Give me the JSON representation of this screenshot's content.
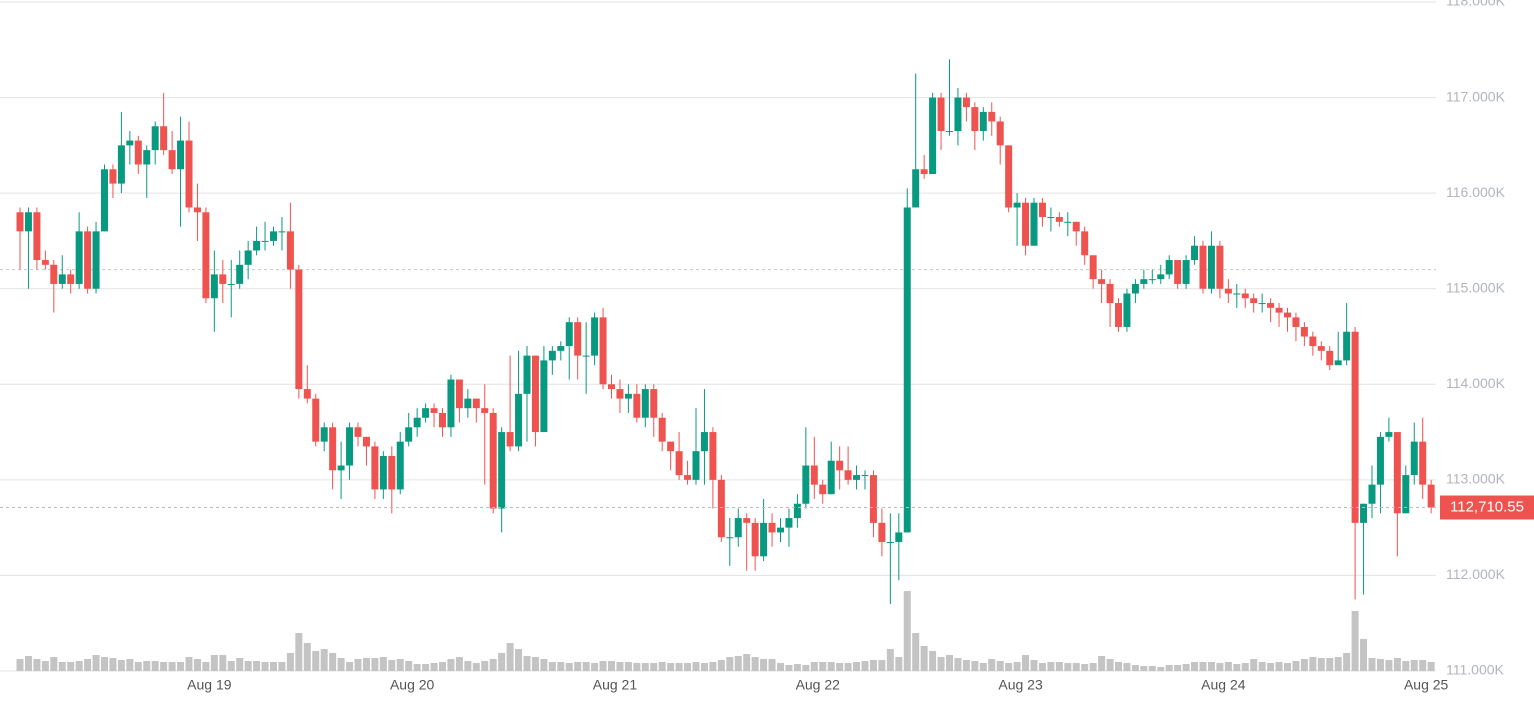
{
  "chart_data": {
    "type": "candlestick",
    "categories": [
      null,
      null,
      null,
      null,
      null,
      null,
      null,
      null,
      null,
      null,
      null,
      null,
      null,
      null,
      null,
      null,
      null,
      null,
      null,
      null,
      null,
      null,
      null,
      "Aug 19",
      null,
      null,
      null,
      null,
      null,
      null,
      null,
      null,
      null,
      null,
      null,
      null,
      null,
      null,
      null,
      null,
      null,
      null,
      null,
      null,
      null,
      null,
      null,
      "Aug 20",
      null,
      null,
      null,
      null,
      null,
      null,
      null,
      null,
      null,
      null,
      null,
      null,
      null,
      null,
      null,
      null,
      null,
      null,
      null,
      null,
      null,
      null,
      null,
      "Aug 21",
      null,
      null,
      null,
      null,
      null,
      null,
      null,
      null,
      null,
      null,
      null,
      null,
      null,
      null,
      null,
      null,
      null,
      null,
      null,
      null,
      null,
      null,
      null,
      "Aug 22",
      null,
      null,
      null,
      null,
      null,
      null,
      null,
      null,
      null,
      null,
      null,
      null,
      null,
      null,
      null,
      null,
      null,
      null,
      null,
      null,
      null,
      null,
      null,
      "Aug 23",
      null,
      null,
      null,
      null,
      null,
      null,
      null,
      null,
      null,
      null,
      null,
      null,
      null,
      null,
      null,
      null,
      null,
      null,
      null,
      null,
      null,
      null,
      null,
      "Aug 24",
      null,
      null,
      null,
      null,
      null,
      null,
      null,
      null,
      null,
      null,
      null,
      null,
      null,
      null,
      null,
      null,
      null,
      null,
      null,
      null,
      null,
      null,
      null,
      "Aug 25"
    ],
    "open": [
      115800,
      115600,
      115800,
      115300,
      115250,
      115050,
      115150,
      115050,
      115600,
      115000,
      115600,
      116250,
      116100,
      116500,
      116550,
      116300,
      116450,
      116700,
      116450,
      116250,
      116550,
      115850,
      115800,
      114900,
      115150,
      115050,
      115050,
      115250,
      115400,
      115500,
      115500,
      115600,
      115600,
      115200,
      113950,
      113850,
      113400,
      113550,
      113100,
      113150,
      113550,
      113450,
      113350,
      112900,
      113250,
      112900,
      113400,
      113550,
      113650,
      113750,
      113700,
      113550,
      114050,
      113750,
      113850,
      113750,
      113700,
      112700,
      113500,
      113350,
      113900,
      114300,
      113500,
      114250,
      114350,
      114400,
      114650,
      114300,
      114300,
      114700,
      114000,
      113950,
      113850,
      113900,
      113650,
      113950,
      113650,
      113400,
      113300,
      113050,
      113000,
      113300,
      113500,
      113000,
      112400,
      112400,
      112600,
      112550,
      112200,
      112550,
      112450,
      112500,
      112600,
      112750,
      113150,
      112950,
      112850,
      113200,
      113100,
      113000,
      113050,
      113050,
      112550,
      112350,
      112350,
      112450,
      115850,
      116250,
      116200,
      117000,
      116650,
      116650,
      117000,
      116900,
      116650,
      116850,
      116750,
      116500,
      115850,
      115900,
      115450,
      115900,
      115750,
      115750,
      115700,
      115700,
      115600,
      115350,
      115100,
      115050,
      114850,
      114600,
      114950,
      115050,
      115100,
      115100,
      115150,
      115300,
      115050,
      115300,
      115450,
      115000,
      115450,
      115000,
      114950,
      114950,
      114900,
      114850,
      114850,
      114800,
      114750,
      114700,
      114600,
      114500,
      114400,
      114350,
      114200,
      114250,
      114550,
      112550,
      112750,
      112950,
      113450,
      113500,
      112650,
      113050,
      113400,
      112950
    ],
    "high": [
      115850,
      115850,
      115850,
      115400,
      115300,
      115350,
      115200,
      115800,
      115650,
      115700,
      116300,
      116300,
      116850,
      116650,
      116600,
      116500,
      116750,
      117050,
      116650,
      116800,
      116750,
      116100,
      115850,
      115400,
      115300,
      115300,
      115400,
      115500,
      115650,
      115700,
      115650,
      115750,
      115900,
      115250,
      114200,
      113900,
      113600,
      113600,
      113400,
      113600,
      113600,
      113450,
      113400,
      113300,
      113350,
      113500,
      113700,
      113750,
      113800,
      113800,
      113750,
      114100,
      114050,
      113950,
      113850,
      114000,
      113750,
      113550,
      114300,
      114350,
      114400,
      114300,
      114400,
      114400,
      114450,
      114700,
      114700,
      114650,
      114750,
      114800,
      114100,
      114050,
      114000,
      114000,
      114000,
      114000,
      113700,
      113400,
      113500,
      113200,
      113750,
      113950,
      113550,
      113050,
      112600,
      112700,
      112650,
      112600,
      112800,
      112650,
      112600,
      112700,
      112850,
      113550,
      113450,
      113000,
      113400,
      113350,
      113350,
      113150,
      113100,
      113100,
      112700,
      112650,
      112650,
      116050,
      117250,
      116400,
      117050,
      117050,
      117400,
      117100,
      117050,
      116950,
      116900,
      116950,
      116800,
      116500,
      116000,
      115950,
      115950,
      115950,
      115850,
      115800,
      115800,
      115700,
      115650,
      115350,
      115200,
      115100,
      114900,
      115000,
      115100,
      115200,
      115200,
      115250,
      115350,
      115300,
      115350,
      115550,
      115500,
      115600,
      115500,
      115100,
      115050,
      115000,
      114950,
      114950,
      114900,
      114850,
      114800,
      114750,
      114650,
      114550,
      114450,
      114400,
      114550,
      114850,
      114600,
      112750,
      113150,
      113500,
      113650,
      113500,
      113150,
      113600,
      113650,
      113000
    ],
    "low": [
      115200,
      115000,
      115200,
      115200,
      114750,
      115000,
      114950,
      115000,
      114950,
      114950,
      115600,
      115950,
      116000,
      116300,
      116200,
      115950,
      116300,
      116400,
      116200,
      115650,
      115800,
      115500,
      114850,
      114550,
      114850,
      114700,
      115000,
      115100,
      115350,
      115400,
      115450,
      115400,
      115000,
      113850,
      113800,
      113350,
      113300,
      112900,
      112800,
      113000,
      113350,
      113150,
      112800,
      112800,
      112650,
      112850,
      113350,
      113450,
      113600,
      113550,
      113450,
      113450,
      113600,
      113650,
      113600,
      112950,
      112650,
      112450,
      113300,
      113300,
      113400,
      113350,
      113500,
      114100,
      114250,
      114050,
      114050,
      113900,
      114200,
      113950,
      113850,
      113700,
      113700,
      113600,
      113550,
      113450,
      113300,
      113100,
      113000,
      112950,
      112950,
      112950,
      112700,
      112350,
      112100,
      112300,
      112050,
      112050,
      112150,
      112300,
      112350,
      112300,
      112500,
      112700,
      112800,
      112750,
      112850,
      112900,
      112950,
      112900,
      112900,
      112400,
      112200,
      111700,
      111950,
      112450,
      115850,
      116150,
      116200,
      116450,
      116600,
      116500,
      116750,
      116450,
      116550,
      116600,
      116300,
      115800,
      115450,
      115350,
      115450,
      115650,
      115600,
      115650,
      115550,
      115450,
      115250,
      115000,
      114850,
      114600,
      114550,
      114550,
      114850,
      115000,
      115050,
      115050,
      115100,
      115000,
      115000,
      115250,
      114950,
      114950,
      114900,
      114850,
      114800,
      114800,
      114750,
      114750,
      114650,
      114600,
      114550,
      114450,
      114400,
      114300,
      114250,
      114150,
      114200,
      114200,
      111750,
      111800,
      112600,
      112650,
      113400,
      112200,
      112650,
      112950,
      112800,
      112650
    ],
    "close": [
      115600,
      115800,
      115300,
      115250,
      115050,
      115150,
      115050,
      115600,
      115000,
      115600,
      116250,
      116100,
      116500,
      116550,
      116300,
      116450,
      116700,
      116450,
      116250,
      116550,
      115850,
      115800,
      114900,
      115150,
      115050,
      115050,
      115250,
      115400,
      115500,
      115500,
      115600,
      115600,
      115200,
      113950,
      113850,
      113400,
      113550,
      113100,
      113150,
      113550,
      113450,
      113350,
      112900,
      113250,
      112900,
      113400,
      113550,
      113650,
      113750,
      113700,
      113550,
      114050,
      113750,
      113850,
      113750,
      113700,
      112700,
      113500,
      113350,
      113900,
      114300,
      113500,
      114250,
      114350,
      114400,
      114650,
      114300,
      114300,
      114700,
      114000,
      113950,
      113850,
      113900,
      113650,
      113950,
      113650,
      113400,
      113300,
      113050,
      113000,
      113300,
      113500,
      113000,
      112400,
      112400,
      112600,
      112550,
      112200,
      112550,
      112450,
      112500,
      112600,
      112750,
      113150,
      112950,
      112850,
      113200,
      113100,
      113000,
      113050,
      113050,
      112550,
      112350,
      112350,
      112450,
      115850,
      116250,
      116200,
      117000,
      116650,
      116650,
      117000,
      116900,
      116650,
      116850,
      116750,
      116500,
      115850,
      115900,
      115450,
      115900,
      115750,
      115750,
      115700,
      115700,
      115600,
      115350,
      115100,
      115050,
      114850,
      114600,
      114950,
      115050,
      115100,
      115100,
      115150,
      115300,
      115050,
      115300,
      115450,
      115000,
      115450,
      115000,
      114950,
      114950,
      114900,
      114850,
      114850,
      114800,
      114750,
      114700,
      114600,
      114500,
      114400,
      114350,
      114200,
      114250,
      114550,
      112550,
      112750,
      112950,
      113450,
      113500,
      112650,
      113050,
      113400,
      112950,
      112710.55
    ],
    "volume": [
      12,
      15,
      12,
      10,
      14,
      9,
      9,
      10,
      12,
      16,
      14,
      13,
      11,
      12,
      9,
      10,
      10,
      9,
      9,
      9,
      14,
      12,
      9,
      16,
      16,
      10,
      13,
      10,
      10,
      9,
      9,
      9,
      18,
      38,
      28,
      20,
      22,
      18,
      13,
      9,
      12,
      13,
      13,
      14,
      11,
      12,
      10,
      7,
      7,
      8,
      9,
      12,
      14,
      10,
      8,
      10,
      12,
      18,
      28,
      22,
      15,
      14,
      12,
      9,
      9,
      8,
      9,
      9,
      8,
      10,
      10,
      9,
      9,
      8,
      8,
      8,
      9,
      8,
      8,
      8,
      9,
      8,
      9,
      11,
      14,
      15,
      17,
      14,
      12,
      12,
      8,
      6,
      7,
      6,
      9,
      9,
      9,
      8,
      8,
      9,
      10,
      11,
      11,
      22,
      14,
      80,
      38,
      25,
      20,
      14,
      16,
      13,
      11,
      10,
      8,
      12,
      10,
      8,
      9,
      16,
      11,
      8,
      9,
      9,
      8,
      8,
      7,
      8,
      15,
      12,
      9,
      8,
      6,
      5,
      5,
      4,
      6,
      6,
      7,
      9,
      9,
      9,
      8,
      9,
      7,
      8,
      12,
      9,
      8,
      9,
      8,
      10,
      12,
      14,
      13,
      13,
      14,
      18,
      60,
      32,
      13,
      12,
      11,
      13,
      10,
      11,
      11,
      9
    ],
    "last_label": "112,710.55",
    "reference_line": 115200,
    "up_color": "#089981",
    "down_color": "#ef5350",
    "volume_color": "#c4c4c4",
    "ylim": [
      111000,
      118000
    ],
    "yticks": [
      {
        "value": 111000,
        "label": "111.000K"
      },
      {
        "value": 112000,
        "label": "112.000K"
      },
      {
        "value": 113000,
        "label": "113.000K"
      },
      {
        "value": 114000,
        "label": "114.000K"
      },
      {
        "value": 115000,
        "label": "115.000K"
      },
      {
        "value": 116000,
        "label": "116.000K"
      },
      {
        "value": 117000,
        "label": "117.000K"
      },
      {
        "value": 118000,
        "label": "118.000K"
      }
    ],
    "grid": true
  }
}
